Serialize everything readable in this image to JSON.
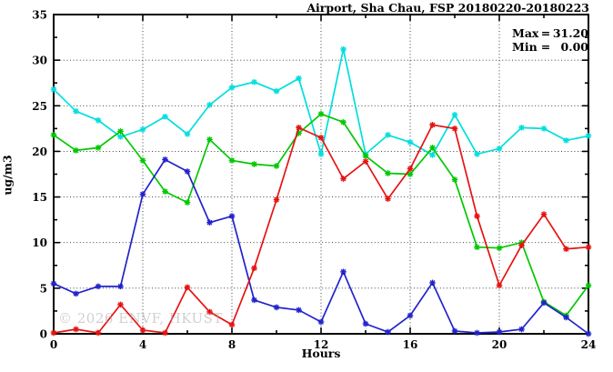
{
  "title": "Airport, Sha Chau, FSP 20180220-20180223",
  "legend": {
    "max_label": "Max",
    "equals_sign": "=",
    "max_value": "31.20",
    "min_label": "Min",
    "min_value": "0.00"
  },
  "watermark": "© 2026 ENVF, HKUST",
  "chart_data": {
    "type": "line",
    "title": "Airport, Sha Chau, FSP 20180220-20180223",
    "xlabel": "Hours",
    "ylabel": "ug/m3",
    "xlim": [
      0,
      24
    ],
    "ylim": [
      0,
      35
    ],
    "xticks_major": [
      0,
      4,
      8,
      12,
      16,
      20,
      24
    ],
    "xticks_minor": [
      2,
      6,
      10,
      14,
      18,
      22
    ],
    "yticks_major": [
      0,
      5,
      10,
      15,
      20,
      25,
      30,
      35
    ],
    "yticks_minor": [
      2.5,
      7.5,
      12.5,
      17.5,
      22.5,
      27.5,
      32.5
    ],
    "grid": true,
    "legend_position": "top-right-inside",
    "marker": "asterisk",
    "x": [
      0,
      1,
      2,
      3,
      4,
      5,
      6,
      7,
      8,
      9,
      10,
      11,
      12,
      13,
      14,
      15,
      16,
      17,
      18,
      19,
      20,
      21,
      22,
      23,
      24
    ],
    "series": [
      {
        "name": "series-cyan",
        "color": "#00dede",
        "values": [
          26.8,
          24.4,
          23.4,
          21.6,
          22.4,
          23.8,
          21.9,
          25.1,
          27.0,
          27.6,
          26.6,
          28.0,
          19.7,
          31.2,
          19.7,
          21.8,
          21.0,
          19.6,
          24.0,
          19.7,
          20.3,
          22.6,
          22.5,
          21.2,
          21.7
        ]
      },
      {
        "name": "series-green",
        "color": "#00c800",
        "values": [
          21.8,
          20.1,
          20.4,
          22.2,
          19.0,
          15.6,
          14.4,
          21.3,
          19.0,
          18.6,
          18.4,
          22.0,
          24.1,
          23.2,
          19.5,
          17.6,
          17.5,
          20.4,
          16.9,
          9.5,
          9.4,
          10.0,
          3.5,
          2.0,
          5.3
        ]
      },
      {
        "name": "series-blue",
        "color": "#2222cc",
        "values": [
          5.5,
          4.4,
          5.2,
          5.2,
          15.3,
          19.1,
          17.8,
          12.2,
          12.9,
          3.7,
          2.9,
          2.6,
          1.3,
          6.8,
          1.1,
          0.2,
          2.0,
          5.6,
          0.3,
          0.1,
          0.2,
          0.5,
          3.4,
          1.8,
          0.0
        ]
      },
      {
        "name": "series-red",
        "color": "#e61212",
        "values": [
          0.1,
          0.5,
          0.1,
          3.2,
          0.4,
          0.1,
          5.1,
          2.4,
          1.0,
          7.2,
          14.7,
          22.6,
          21.5,
          17.0,
          18.9,
          14.8,
          18.1,
          22.9,
          22.5,
          12.9,
          5.3,
          9.7,
          13.1,
          9.3,
          9.5
        ]
      }
    ],
    "stats": {
      "max": 31.2,
      "min": 0.0
    }
  }
}
